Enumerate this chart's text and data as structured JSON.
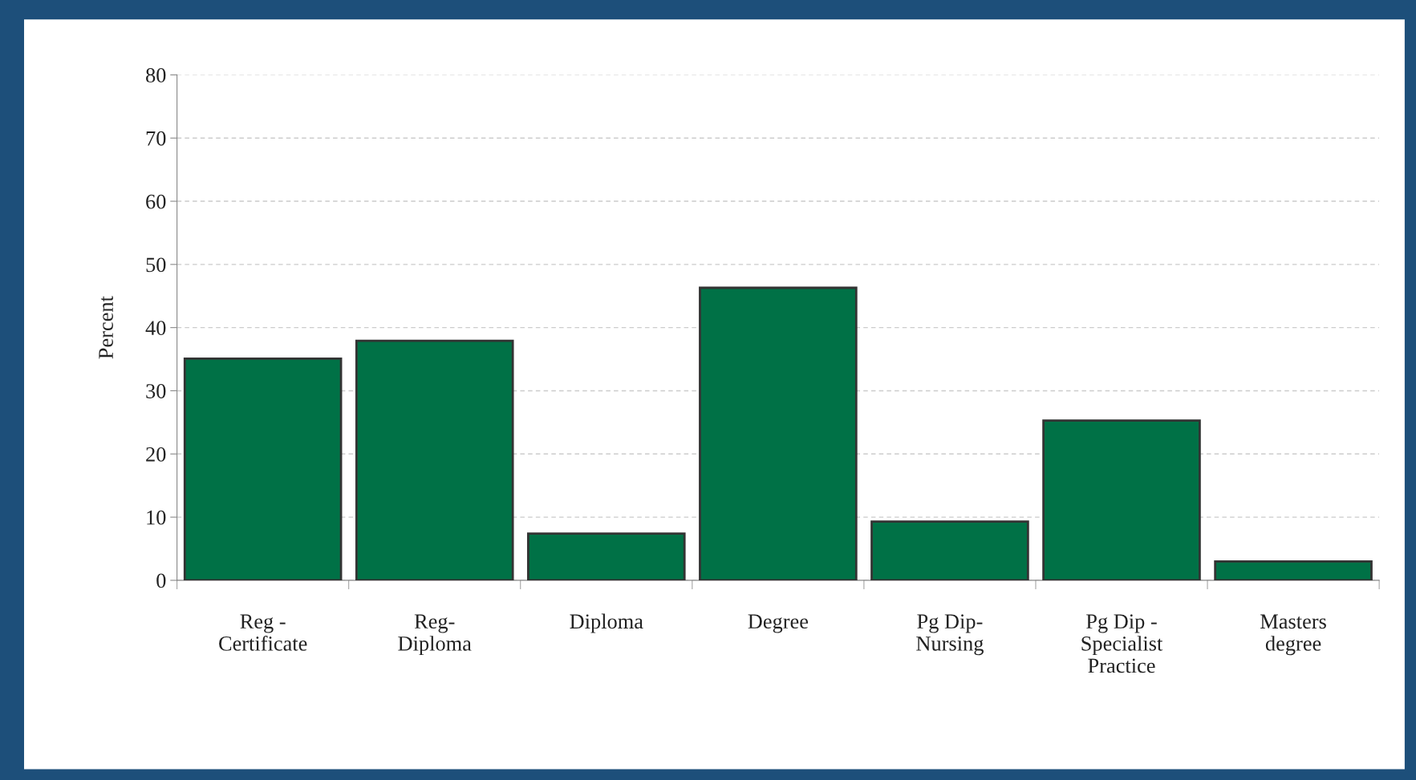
{
  "chart_data": {
    "type": "bar",
    "categories": [
      "Reg -\nCertificate",
      "Reg-\nDiploma",
      "Diploma",
      "Degree",
      "Pg Dip-\nNursing",
      "Pg Dip -\nSpecialist\nPractice",
      "Masters\ndegree"
    ],
    "values": [
      35.1,
      37.9,
      7.4,
      46.3,
      9.3,
      25.3,
      3.0
    ],
    "color": "#007146",
    "ylabel": "Percent",
    "ylim": [
      0,
      80
    ],
    "yticks": [
      0,
      10,
      20,
      30,
      40,
      50,
      60,
      70,
      80
    ],
    "grid": "y"
  }
}
